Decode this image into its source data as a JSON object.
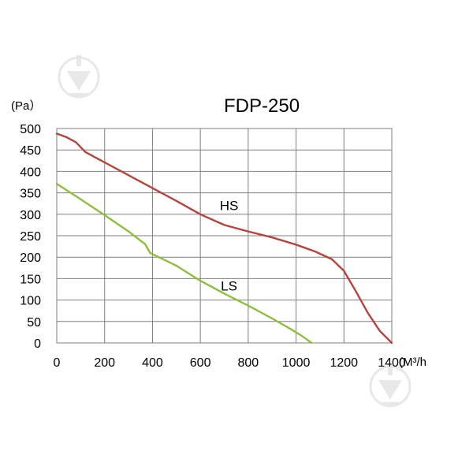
{
  "chart_data": {
    "type": "line",
    "title": "FDP-250",
    "ylabel": "(Pa）",
    "xlabel": "(M³/h",
    "xlim": [
      0,
      1400
    ],
    "ylim": [
      0,
      500
    ],
    "x_ticks": [
      "0",
      "200",
      "400",
      "600",
      "800",
      "1000",
      "1200",
      "1400"
    ],
    "y_ticks": [
      "500",
      "450",
      "400",
      "350",
      "300",
      "250",
      "200",
      "150",
      "100",
      "50",
      "0"
    ],
    "x_tick_values": [
      0,
      200,
      400,
      600,
      800,
      1000,
      1200,
      1400
    ],
    "y_tick_values": [
      500,
      450,
      400,
      350,
      300,
      250,
      200,
      150,
      100,
      50,
      0
    ],
    "grid": true,
    "series": [
      {
        "name": "HS",
        "color": "#b5443e",
        "label_at": [
          720,
          310
        ],
        "points": [
          [
            0,
            488
          ],
          [
            40,
            480
          ],
          [
            80,
            468
          ],
          [
            120,
            445
          ],
          [
            200,
            421
          ],
          [
            300,
            391
          ],
          [
            400,
            361
          ],
          [
            500,
            331
          ],
          [
            600,
            300
          ],
          [
            700,
            275
          ],
          [
            800,
            260
          ],
          [
            900,
            246
          ],
          [
            1000,
            229
          ],
          [
            1080,
            213
          ],
          [
            1150,
            195
          ],
          [
            1200,
            168
          ],
          [
            1250,
            120
          ],
          [
            1300,
            70
          ],
          [
            1350,
            28
          ],
          [
            1400,
            0
          ]
        ]
      },
      {
        "name": "LS",
        "color": "#8dbe3d",
        "label_at": [
          720,
          122
        ],
        "points": [
          [
            0,
            371
          ],
          [
            100,
            335
          ],
          [
            200,
            298
          ],
          [
            300,
            260
          ],
          [
            370,
            230
          ],
          [
            390,
            210
          ],
          [
            500,
            180
          ],
          [
            600,
            145
          ],
          [
            700,
            115
          ],
          [
            800,
            87
          ],
          [
            900,
            57
          ],
          [
            960,
            38
          ],
          [
            1020,
            18
          ],
          [
            1065,
            0
          ]
        ]
      }
    ]
  }
}
